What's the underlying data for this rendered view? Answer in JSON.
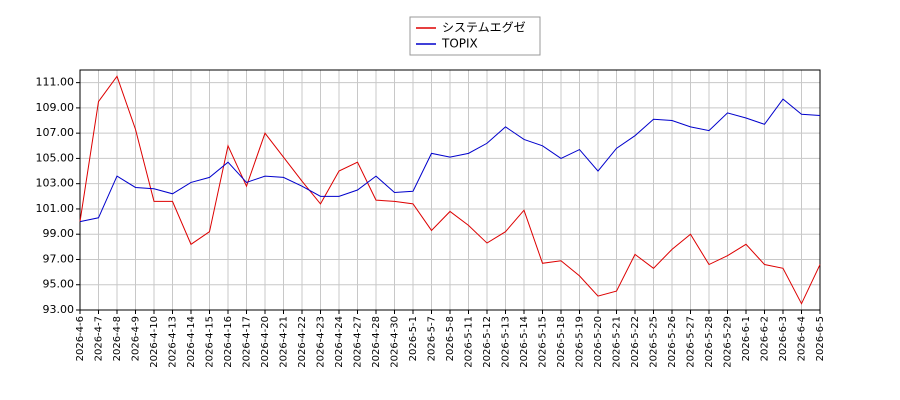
{
  "chart_data": {
    "type": "line",
    "categories": [
      "2026-4-6",
      "2026-4-7",
      "2026-4-8",
      "2026-4-9",
      "2026-4-10",
      "2026-4-13",
      "2026-4-14",
      "2026-4-15",
      "2026-4-16",
      "2026-4-17",
      "2026-4-20",
      "2026-4-21",
      "2026-4-22",
      "2026-4-23",
      "2026-4-24",
      "2026-4-27",
      "2026-4-28",
      "2026-4-30",
      "2026-5-1",
      "2026-5-7",
      "2026-5-8",
      "2026-5-11",
      "2026-5-12",
      "2026-5-13",
      "2026-5-14",
      "2026-5-15",
      "2026-5-18",
      "2026-5-19",
      "2026-5-20",
      "2026-5-21",
      "2026-5-22",
      "2026-5-25",
      "2026-5-26",
      "2026-5-27",
      "2026-5-28",
      "2026-5-29",
      "2026-6-1",
      "2026-6-2",
      "2026-6-3",
      "2026-6-4",
      "2026-6-5"
    ],
    "series": [
      {
        "name": "システムエグゼ",
        "color": "#dd0000",
        "values": [
          100.0,
          109.5,
          111.5,
          107.3,
          101.6,
          101.6,
          98.2,
          99.2,
          106.0,
          102.8,
          107.0,
          105.1,
          103.2,
          101.4,
          104.0,
          104.7,
          101.7,
          101.6,
          101.4,
          99.3,
          100.8,
          99.7,
          98.3,
          99.2,
          100.9,
          96.7,
          96.9,
          95.7,
          94.1,
          94.5,
          97.4,
          96.3,
          97.8,
          99.0,
          96.6,
          97.3,
          98.2,
          96.6,
          96.3,
          93.5,
          96.6
        ]
      },
      {
        "name": "TOPIX",
        "color": "#0000cc",
        "values": [
          100.0,
          100.3,
          103.6,
          102.7,
          102.6,
          102.2,
          103.1,
          103.5,
          104.7,
          103.1,
          103.6,
          103.5,
          102.8,
          102.0,
          102.0,
          102.5,
          103.6,
          102.3,
          102.4,
          105.4,
          105.1,
          105.4,
          106.2,
          107.5,
          106.5,
          106.0,
          105.0,
          105.7,
          104.0,
          105.8,
          106.8,
          108.1,
          108.0,
          107.5,
          107.2,
          108.6,
          108.2,
          107.7,
          109.7,
          108.5,
          108.4
        ]
      }
    ],
    "ylim": [
      93,
      112
    ],
    "yticks": [
      {
        "value": 93,
        "label": "93.00"
      },
      {
        "value": 95,
        "label": "95.00"
      },
      {
        "value": 97,
        "label": "97.00"
      },
      {
        "value": 99,
        "label": "99.00"
      },
      {
        "value": 101,
        "label": "101.00"
      },
      {
        "value": 103,
        "label": "103.00"
      },
      {
        "value": 105,
        "label": "105.00"
      },
      {
        "value": 107,
        "label": "107.00"
      },
      {
        "value": 109,
        "label": "109.00"
      },
      {
        "value": 111,
        "label": "111.00"
      }
    ],
    "grid": true,
    "legend": "top"
  }
}
